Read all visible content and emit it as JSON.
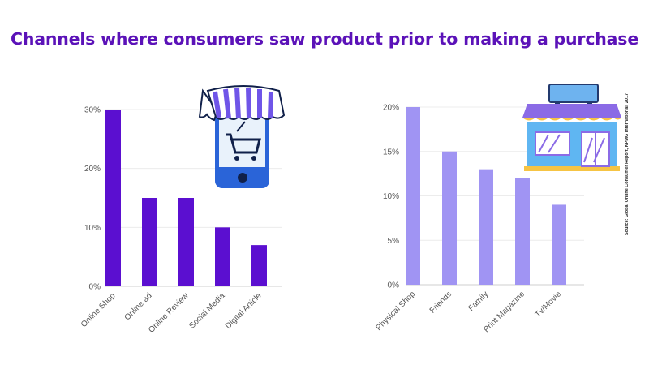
{
  "title": "Channels where consumers saw product prior to making a purchase",
  "source": "Source: Global Online Consumer Report, KPMG International, 2017",
  "icons": {
    "left": "mobile-shop-cart-icon",
    "right": "storefront-icon"
  },
  "chart_data": [
    {
      "type": "bar",
      "categories": [
        "Online Shop",
        "Online ad",
        "Online Review",
        "Social Media",
        "Digital Article"
      ],
      "values": [
        30,
        15,
        15,
        10,
        7
      ],
      "yticks": [
        "0%",
        "10%",
        "20%",
        "30%"
      ],
      "ylim": [
        0,
        30
      ],
      "grid": true,
      "color": "#5b0fd0"
    },
    {
      "type": "bar",
      "categories": [
        "Physical Shop",
        "Friends",
        "Family",
        "Print Magazine",
        "Tv/Movie"
      ],
      "values": [
        20,
        15,
        13,
        12,
        9
      ],
      "yticks": [
        "0%",
        "5%",
        "10%",
        "15%",
        "20%"
      ],
      "ylim": [
        0,
        20
      ],
      "grid": true,
      "color": "#a094f3"
    }
  ]
}
